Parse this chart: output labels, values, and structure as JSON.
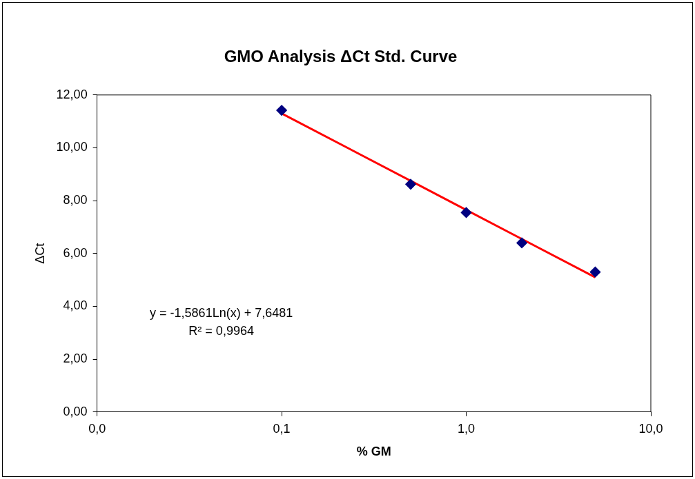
{
  "chart_data": {
    "type": "scatter",
    "title": "GMO Analysis ΔCt Std. Curve",
    "xlabel": "% GM",
    "ylabel": "ΔCt",
    "x": [
      0.1,
      0.5,
      1,
      2,
      5
    ],
    "series": [
      {
        "type": "scatter",
        "color": "#000080",
        "values": [
          11.42,
          8.62,
          7.55,
          6.4,
          5.3
        ],
        "marker": "diamond"
      },
      {
        "type": "line",
        "color": "#ff0000",
        "x": [
          0.1,
          0.5,
          1,
          2,
          5
        ],
        "values": [
          11.3,
          8.75,
          7.65,
          6.55,
          5.1
        ],
        "marker": "none",
        "line_style": "solid"
      }
    ],
    "log": "x",
    "xlim": [
      0.01,
      10
    ],
    "xticks": [
      {
        "value": 0.01,
        "label": "0,0"
      },
      {
        "value": 0.1,
        "label": "0,1"
      },
      {
        "value": 1,
        "label": "1,0"
      },
      {
        "value": 10,
        "label": "10,0"
      }
    ],
    "ylim": [
      0,
      12
    ],
    "yticks": [
      {
        "value": 0,
        "label": "0,00"
      },
      {
        "value": 2,
        "label": "2,00"
      },
      {
        "value": 4,
        "label": "4,00"
      },
      {
        "value": 6,
        "label": "6,00"
      },
      {
        "value": 8,
        "label": "8,00"
      },
      {
        "value": 10,
        "label": "10,00"
      },
      {
        "value": 12,
        "label": "12,00"
      }
    ],
    "legend": false,
    "annotations": [
      "y = -1,5861Ln(x) + 7,6481",
      "R² = 0,9964"
    ]
  }
}
